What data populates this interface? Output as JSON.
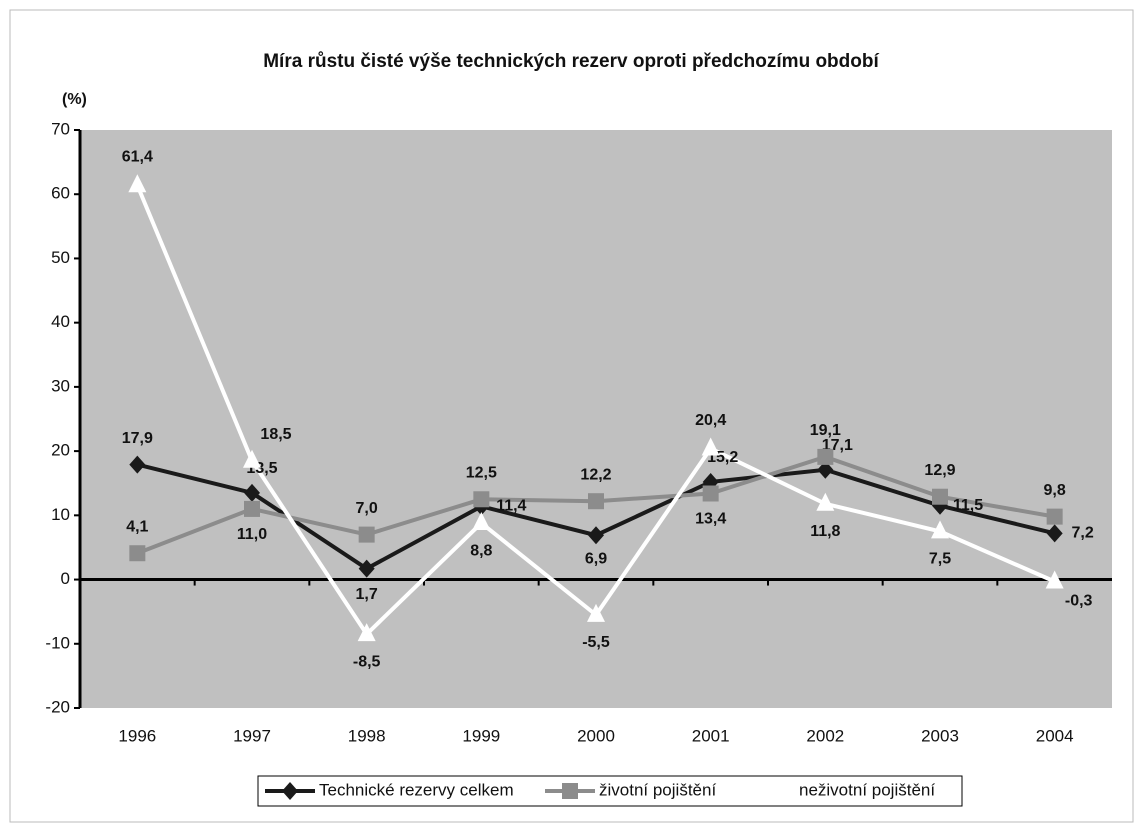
{
  "chart_data": {
    "type": "line",
    "title": "Míra růstu čisté výše technických rezerv oproti předchozímu období",
    "y_axis_label": "(%)",
    "categories": [
      "1996",
      "1997",
      "1998",
      "1999",
      "2000",
      "2001",
      "2002",
      "2003",
      "2004"
    ],
    "series": [
      {
        "name": "Technické rezervy celkem",
        "color": "#1a1a1a",
        "marker": "diamond",
        "values": [
          17.9,
          13.5,
          1.7,
          11.4,
          6.9,
          15.2,
          17.1,
          11.5,
          7.2
        ],
        "value_labels": [
          "17,9",
          "13,5",
          "1,7",
          "11,4",
          "6,9",
          "15,2",
          "17,1",
          "11,5",
          "7,2"
        ]
      },
      {
        "name": "životní pojištění",
        "color": "#8c8c8c",
        "marker": "square",
        "values": [
          4.1,
          11.0,
          7.0,
          12.5,
          12.2,
          13.4,
          19.1,
          12.9,
          9.8
        ],
        "value_labels": [
          "4,1",
          "11,0",
          "7,0",
          "12,5",
          "12,2",
          "13,4",
          "19,1",
          "12,9",
          "9,8"
        ]
      },
      {
        "name": "neživotní pojištění",
        "color": "#ffffff",
        "marker": "triangle",
        "values": [
          61.4,
          18.5,
          -8.5,
          8.8,
          -5.5,
          20.4,
          11.8,
          7.5,
          -0.3
        ],
        "value_labels": [
          "61,4",
          "18,5",
          "-8,5",
          "8,8",
          "-5,5",
          "20,4",
          "11,8",
          "7,5",
          "-0,3"
        ]
      }
    ],
    "ylim": [
      -20,
      70
    ],
    "yticks": [
      -20,
      -10,
      0,
      10,
      20,
      30,
      40,
      50,
      60,
      70
    ],
    "legend": "bottom",
    "plot_background": "#c0c0c0"
  }
}
